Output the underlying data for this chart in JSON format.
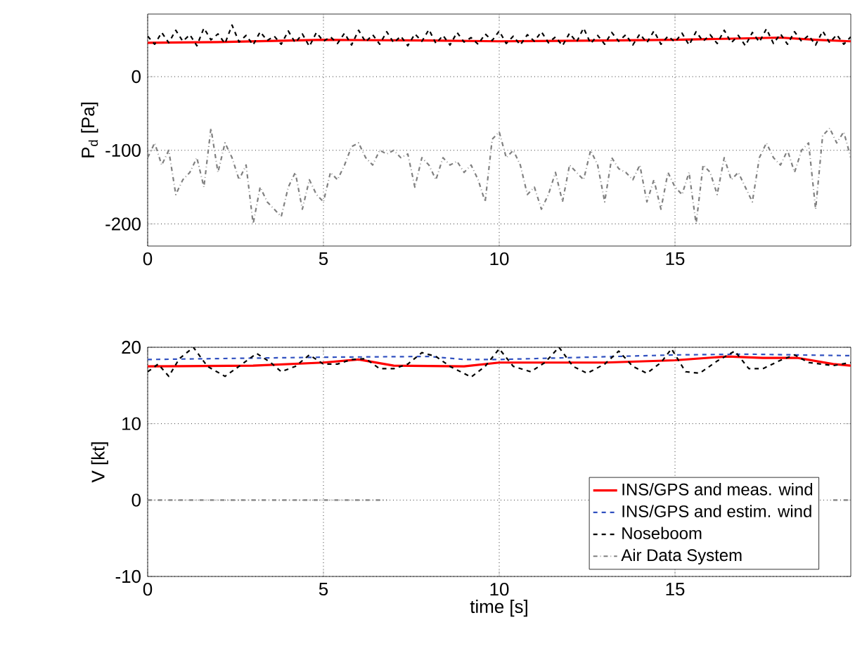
{
  "chart_data": [
    {
      "type": "line",
      "ylabel": "P$_{d}$ [Pa]",
      "xlim": [
        0,
        20
      ],
      "xticks": [
        0,
        5,
        10,
        15
      ],
      "ylim": [
        -230,
        85
      ],
      "yticks": [
        -200,
        -100,
        0
      ],
      "grid": true,
      "x": [
        0,
        0.2,
        0.4,
        0.6,
        0.8,
        1,
        1.2,
        1.4,
        1.6,
        1.8,
        2,
        2.2,
        2.4,
        2.6,
        2.8,
        3,
        3.2,
        3.4,
        3.6,
        3.8,
        4,
        4.2,
        4.4,
        4.6,
        4.8,
        5,
        5.2,
        5.4,
        5.6,
        5.8,
        6,
        6.2,
        6.4,
        6.6,
        6.8,
        7,
        7.2,
        7.4,
        7.6,
        7.8,
        8,
        8.2,
        8.4,
        8.6,
        8.8,
        9,
        9.2,
        9.4,
        9.6,
        9.8,
        10,
        10.2,
        10.4,
        10.6,
        10.8,
        11,
        11.2,
        11.4,
        11.6,
        11.8,
        12,
        12.2,
        12.4,
        12.6,
        12.8,
        13,
        13.2,
        13.4,
        13.6,
        13.8,
        14,
        14.2,
        14.4,
        14.6,
        14.8,
        15,
        15.2,
        15.4,
        15.6,
        15.8,
        16,
        16.2,
        16.4,
        16.6,
        16.8,
        17,
        17.2,
        17.4,
        17.6,
        17.8,
        18,
        18.2,
        18.4,
        18.6,
        18.8,
        19,
        19.2,
        19.4,
        19.6,
        19.8,
        20
      ],
      "series": [
        {
          "color": "#ff0000",
          "line_style": "solid",
          "x": [
            0,
            2,
            5,
            8,
            10,
            13,
            15,
            17,
            18,
            19,
            20
          ],
          "values": [
            46,
            47,
            50,
            49,
            48,
            49,
            50,
            52,
            53,
            50,
            48
          ]
        },
        {
          "color": "#000000",
          "line_style": "dashed",
          "values": [
            55,
            44,
            60,
            46,
            63,
            48,
            57,
            42,
            66,
            50,
            58,
            45,
            70,
            47,
            56,
            43,
            61,
            49,
            55,
            44,
            62,
            46,
            58,
            41,
            60,
            48,
            54,
            45,
            59,
            43,
            63,
            47,
            57,
            44,
            61,
            46,
            55,
            42,
            58,
            48,
            64,
            45,
            56,
            43,
            60,
            47,
            53,
            44,
            58,
            49,
            62,
            45,
            55,
            43,
            57,
            48,
            61,
            46,
            54,
            42,
            59,
            47,
            66,
            45,
            56,
            44,
            60,
            48,
            57,
            43,
            58,
            46,
            62,
            44,
            55,
            47,
            59,
            43,
            61,
            48,
            57,
            45,
            63,
            46,
            56,
            42,
            60,
            47,
            65,
            45,
            58,
            44,
            61,
            48,
            56,
            43,
            62,
            46,
            57,
            44,
            54
          ]
        },
        {
          "color": "#808080",
          "line_style": "dashdot",
          "values": [
            -110,
            -90,
            -120,
            -100,
            -160,
            -140,
            -130,
            -110,
            -150,
            -70,
            -130,
            -90,
            -110,
            -140,
            -120,
            -200,
            -150,
            -170,
            -180,
            -190,
            -150,
            -130,
            -180,
            -140,
            -160,
            -170,
            -130,
            -140,
            -120,
            -95,
            -90,
            -110,
            -120,
            -100,
            -105,
            -100,
            -110,
            -105,
            -150,
            -110,
            -120,
            -140,
            -110,
            -120,
            -115,
            -130,
            -120,
            -140,
            -170,
            -85,
            -75,
            -110,
            -100,
            -120,
            -160,
            -150,
            -180,
            -160,
            -130,
            -170,
            -120,
            -130,
            -140,
            -100,
            -120,
            -170,
            -110,
            -125,
            -130,
            -140,
            -120,
            -170,
            -140,
            -180,
            -130,
            -150,
            -160,
            -130,
            -200,
            -120,
            -130,
            -160,
            -110,
            -140,
            -130,
            -150,
            -170,
            -110,
            -90,
            -110,
            -120,
            -100,
            -130,
            -100,
            -90,
            -180,
            -80,
            -70,
            -90,
            -75,
            -110
          ]
        }
      ]
    },
    {
      "type": "line",
      "xlabel": "time [s]",
      "ylabel": "V [kt]",
      "xlim": [
        0,
        20
      ],
      "xticks": [
        0,
        5,
        10,
        15
      ],
      "ylim": [
        -10,
        20
      ],
      "yticks": [
        -10,
        0,
        10,
        20
      ],
      "grid": true,
      "legend": "bottom right",
      "series": [
        {
          "name": "INS/GPS and meas. wind",
          "color": "#ff0000",
          "line_style": "solid",
          "x": [
            0,
            3,
            5,
            6,
            7,
            9,
            10,
            13,
            15,
            16.5,
            17.5,
            18.5,
            19.5,
            20
          ],
          "values": [
            17.5,
            17.6,
            18,
            18.4,
            17.6,
            17.5,
            18,
            18,
            18.3,
            18.8,
            18.6,
            18.6,
            17.8,
            17.6
          ]
        },
        {
          "name": "INS/GPS and estim. wind",
          "color": "#3050c0",
          "line_style": "dashed",
          "x": [
            0,
            5,
            8,
            9,
            10,
            15,
            17,
            20
          ],
          "values": [
            18.4,
            18.7,
            18.8,
            18.4,
            18.4,
            19,
            19.1,
            18.9
          ]
        },
        {
          "name": "Noseboom",
          "color": "#000000",
          "line_style": "dashed",
          "x": [
            0,
            0.3,
            0.6,
            0.9,
            1.3,
            1.7,
            2.2,
            2.6,
            3.1,
            3.5,
            3.8,
            4.2,
            4.6,
            5,
            5.4,
            5.8,
            6.2,
            6.6,
            7,
            7.4,
            7.8,
            8.2,
            8.6,
            9.2,
            9.6,
            10,
            10.4,
            10.9,
            11.3,
            11.7,
            12.1,
            12.5,
            13,
            13.4,
            13.8,
            14.2,
            14.6,
            14.9,
            15.3,
            15.7,
            16.2,
            16.7,
            17.1,
            17.5,
            18,
            18.4,
            18.8,
            19.5,
            20
          ],
          "values": [
            16.8,
            17.8,
            16.2,
            18.5,
            20,
            17.5,
            16.2,
            17.5,
            19.2,
            18,
            16.8,
            17.5,
            19,
            17.8,
            17.8,
            18.4,
            18.5,
            17.2,
            17.2,
            17.8,
            19.3,
            18.8,
            17.5,
            16.1,
            17.5,
            19.8,
            17.5,
            16.8,
            18,
            20,
            17.5,
            16.6,
            17.8,
            19.5,
            17.5,
            16.6,
            18,
            19.8,
            16.8,
            16.6,
            18.2,
            19.5,
            17.2,
            17.2,
            18.3,
            19,
            18,
            17.6,
            18
          ]
        },
        {
          "name": "Air Data System",
          "color": "#808080",
          "line_style": "dashdot",
          "x": [
            0,
            6.8,
            7,
            19.4,
            19.5,
            20
          ],
          "values": [
            0,
            0,
            null,
            null,
            0,
            0
          ]
        }
      ]
    }
  ]
}
